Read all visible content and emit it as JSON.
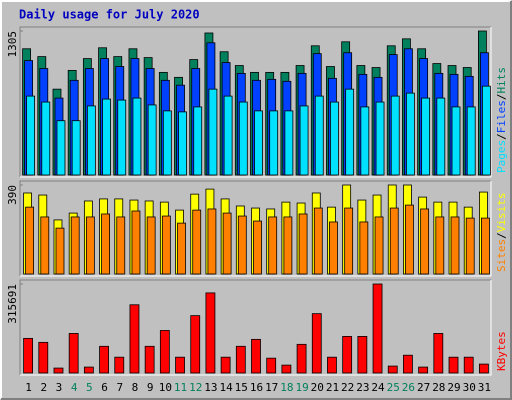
{
  "chart_data": [
    {
      "type": "bar",
      "title": "Daily usage for July 2020",
      "title_color": "#0000c0",
      "ylim": [
        0,
        1305
      ],
      "yticks": [
        1305
      ],
      "legend_separator": "/",
      "series": [
        {
          "name": "Hits",
          "color": "#00805c",
          "values": [
            1144,
            1073,
            778,
            948,
            1055,
            1153,
            1073,
            1144,
            1064,
            930,
            885,
            1046,
            1287,
            1117,
            992,
            930,
            930,
            930,
            992,
            1171,
            983,
            1207,
            992,
            974,
            1171,
            1234,
            1144,
            1010,
            992,
            974,
            1305
          ]
        },
        {
          "name": "Files",
          "color": "#0040ff",
          "values": [
            1037,
            965,
            697,
            858,
            965,
            1055,
            983,
            1055,
            965,
            858,
            814,
            965,
            1198,
            1019,
            921,
            858,
            867,
            849,
            921,
            1100,
            876,
            1108,
            912,
            885,
            1091,
            1144,
            1055,
            921,
            912,
            894,
            1108
          ]
        },
        {
          "name": "Pages",
          "color": "#00e0ff",
          "values": [
            715,
            661,
            492,
            492,
            626,
            688,
            679,
            697,
            635,
            581,
            572,
            617,
            778,
            715,
            661,
            581,
            581,
            581,
            626,
            715,
            661,
            778,
            617,
            661,
            715,
            742,
            697,
            697,
            617,
            617,
            805
          ]
        }
      ]
    },
    {
      "type": "bar",
      "ylim": [
        0,
        390
      ],
      "yticks": [
        390
      ],
      "legend_separator": "/",
      "series": [
        {
          "name": "Visits",
          "color": "#ffff00",
          "values": [
            355,
            346,
            237,
            267,
            320,
            329,
            329,
            324,
            320,
            315,
            280,
            350,
            372,
            329,
            298,
            289,
            285,
            315,
            311,
            355,
            293,
            390,
            324,
            346,
            390,
            390,
            337,
            315,
            315,
            293,
            359
          ]
        },
        {
          "name": "Sites",
          "color": "#ff8000",
          "values": [
            293,
            250,
            201,
            250,
            250,
            263,
            250,
            276,
            250,
            254,
            223,
            280,
            285,
            267,
            254,
            232,
            250,
            250,
            263,
            289,
            228,
            289,
            228,
            250,
            289,
            302,
            285,
            250,
            250,
            245,
            245
          ]
        }
      ]
    },
    {
      "type": "bar",
      "ylim": [
        0,
        315691
      ],
      "yticks": [
        315691
      ],
      "categories": [
        "1",
        "2",
        "3",
        "4",
        "5",
        "6",
        "7",
        "8",
        "9",
        "10",
        "11",
        "12",
        "13",
        "14",
        "15",
        "16",
        "17",
        "18",
        "19",
        "20",
        "21",
        "22",
        "23",
        "24",
        "25",
        "26",
        "27",
        "28",
        "29",
        "30",
        "31"
      ],
      "category_colors": [
        "#000000",
        "#000000",
        "#000000",
        "#00805c",
        "#00805c",
        "#000000",
        "#000000",
        "#000000",
        "#000000",
        "#000000",
        "#00805c",
        "#00805c",
        "#000000",
        "#000000",
        "#000000",
        "#000000",
        "#000000",
        "#00805c",
        "#00805c",
        "#000000",
        "#000000",
        "#000000",
        "#000000",
        "#000000",
        "#00805c",
        "#00805c",
        "#000000",
        "#000000",
        "#000000",
        "#000000",
        "#000000"
      ],
      "series": [
        {
          "name": "KBytes",
          "color": "#ff0000",
          "values": [
            122800,
            108700,
            17500,
            140300,
            21000,
            94700,
            56100,
            242000,
            94700,
            150800,
            56100,
            203500,
            284100,
            56100,
            94700,
            119300,
            52600,
            28000,
            101700,
            210500,
            56100,
            129800,
            129800,
            315691,
            24600,
            63100,
            21000,
            140300,
            56100,
            56100,
            31600
          ]
        }
      ]
    }
  ]
}
